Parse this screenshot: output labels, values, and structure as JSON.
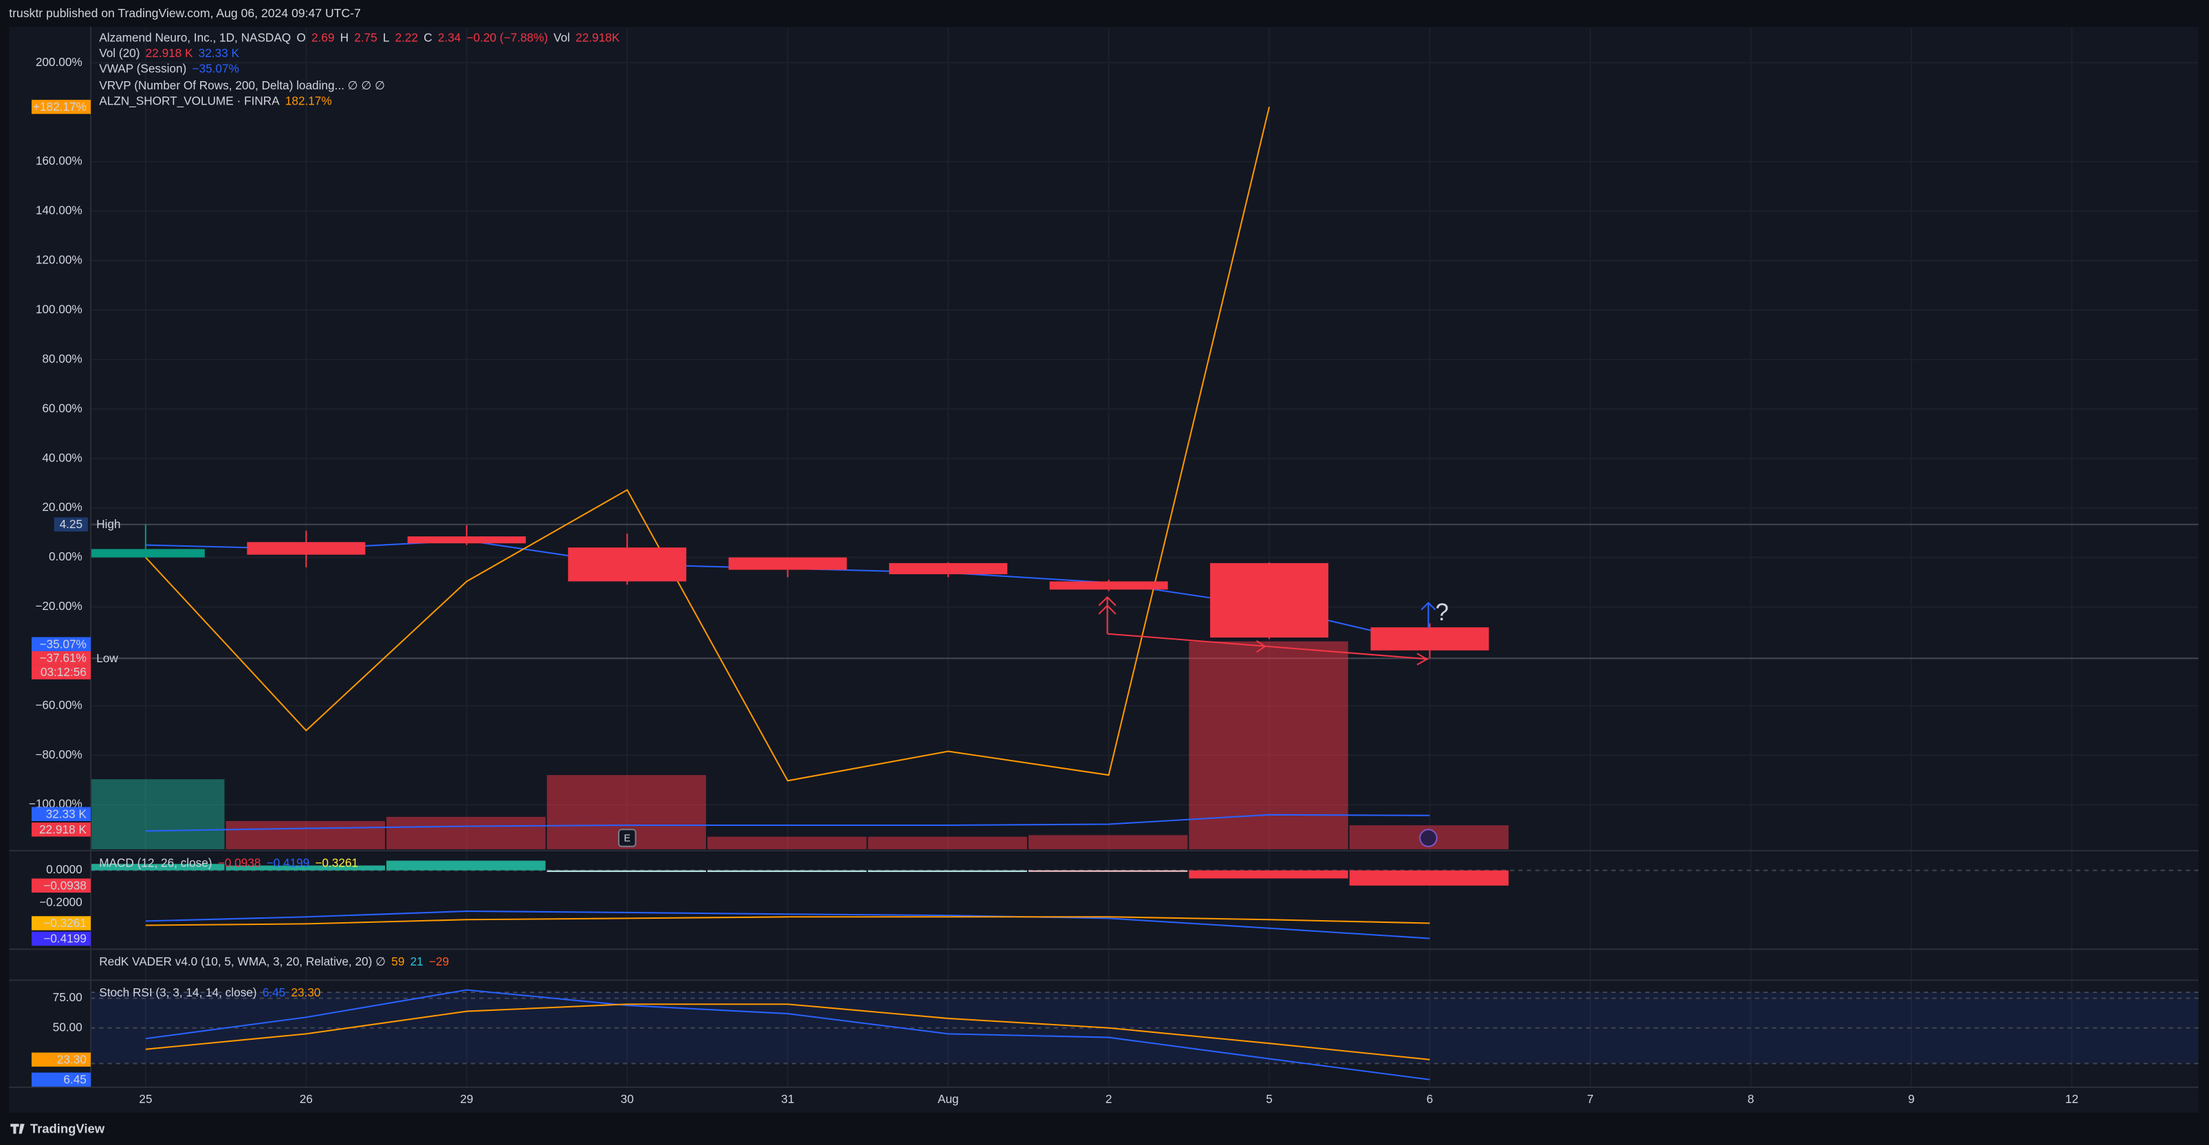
{
  "header": {
    "text": "trusktr published on TradingView.com, Aug 06, 2024 09:47 UTC-7"
  },
  "footer": {
    "brand": "TradingView"
  },
  "annotations": [
    {
      "text": "?"
    }
  ],
  "chart_data": [
    {
      "type": "candlestick",
      "legend": [
        [
          {
            "text": "Alzamend Neuro, Inc., 1D, NASDAQ"
          },
          {
            "text": "O"
          },
          {
            "text": "2.69",
            "color": "#f23645"
          },
          {
            "text": "H"
          },
          {
            "text": "2.75",
            "color": "#f23645"
          },
          {
            "text": "L"
          },
          {
            "text": "2.22",
            "color": "#f23645"
          },
          {
            "text": "C"
          },
          {
            "text": "2.34",
            "color": "#f23645"
          },
          {
            "text": "−0.20 (−7.88%)",
            "color": "#f23645"
          },
          {
            "text": "Vol"
          },
          {
            "text": "22.918K",
            "color": "#f23645"
          }
        ],
        [
          {
            "text": "Vol (20)"
          },
          {
            "text": "22.918 K",
            "color": "#f23645"
          },
          {
            "text": "32.33 K",
            "color": "#2962ff"
          }
        ],
        [
          {
            "text": "VWAP (Session)"
          },
          {
            "text": "−35.07%",
            "color": "#2962ff"
          }
        ],
        [
          {
            "text": "VRVP (Number Of Rows, 200, Delta) loading...  ∅  ∅  ∅"
          }
        ],
        [
          {
            "text": "ALZN_SHORT_VOLUME · FINRA"
          },
          {
            "text": "182.17%",
            "color": "#ff9800"
          }
        ]
      ],
      "categories": [
        "25",
        "26",
        "29",
        "30",
        "31",
        "Aug",
        "2",
        "5",
        "6",
        "7",
        "8",
        "9",
        "12"
      ],
      "open": [
        0,
        6.2,
        8.5,
        4,
        0,
        -2.3,
        -9.7,
        -2.3,
        -28.27,
        null,
        null,
        null,
        null
      ],
      "high": [
        13.33,
        10.8,
        13,
        9.6,
        0,
        -2,
        -9,
        -2,
        -26.67,
        null,
        null,
        null,
        null
      ],
      "low": [
        0,
        -4,
        5,
        -11,
        -8,
        -8,
        -13.6,
        -33,
        -40.8,
        null,
        null,
        null,
        null
      ],
      "close": [
        3.4,
        1.1,
        5.7,
        -9.7,
        -5,
        -6.8,
        -13,
        -32.4,
        -37.61,
        null,
        null,
        null,
        null
      ],
      "up_color": "#089981",
      "down_color": "#f23645",
      "series": [
        {
          "color": "#2962ff",
          "values": [
            5,
            3.4,
            6.8,
            -2.8,
            -4.5,
            -6.2,
            -10.2,
            -19.9,
            -35.07,
            null,
            null,
            null,
            null
          ]
        },
        {
          "color": "#ff9800",
          "values": [
            0,
            -70,
            -9.7,
            27.3,
            -90.3,
            -78.4,
            -88,
            182.17,
            null,
            null,
            null,
            null,
            null
          ]
        }
      ],
      "ylim": [
        -118,
        214
      ],
      "yticks": [
        {
          "value": 200,
          "label": "200.00%"
        },
        {
          "value": 160,
          "label": "160.00%"
        },
        {
          "value": 140,
          "label": "140.00%"
        },
        {
          "value": 120,
          "label": "120.00%"
        },
        {
          "value": 100,
          "label": "100.00%"
        },
        {
          "value": 80,
          "label": "80.00%"
        },
        {
          "value": 60,
          "label": "60.00%"
        },
        {
          "value": 40,
          "label": "40.00%"
        },
        {
          "value": 20,
          "label": "20.00%"
        },
        {
          "value": 0,
          "label": "0.00%"
        },
        {
          "value": -20,
          "label": "−20.00%"
        },
        {
          "value": -60,
          "label": "−60.00%"
        },
        {
          "value": -80,
          "label": "−80.00%"
        },
        {
          "value": -100,
          "label": "−100.00%"
        }
      ],
      "grid": true,
      "tags": [
        {
          "value": 182.17,
          "label": "+182.17%",
          "color": "#ff9800"
        },
        {
          "value": -35.07,
          "label": "−35.07%",
          "color": "#2962ff"
        },
        {
          "value": -37.61,
          "label": "−37.61%",
          "color": "#f23645"
        }
      ],
      "countdown": {
        "label": "03:12:56",
        "color": "#f23645"
      },
      "levels": [
        {
          "price": 4.25,
          "name": "High",
          "value": 13.33
        },
        {
          "price": 2.22,
          "name": "Low",
          "value": -40.8
        }
      ]
    },
    {
      "type": "bar",
      "values": [
        67,
        27,
        31,
        71,
        12,
        12,
        13.5,
        199,
        22.918,
        null,
        null,
        null,
        null
      ],
      "colors": [
        "#22ab94",
        "#f23645",
        "#f23645",
        "#f23645",
        "#f23645",
        "#f23645",
        "#f23645",
        "#f23645",
        "#f23645",
        null,
        null,
        null,
        null
      ],
      "ylim": [
        0,
        786
      ],
      "ma": {
        "color": "#2962ff",
        "values": [
          17.5,
          20,
          22,
          23,
          23,
          23,
          24,
          33,
          32.33,
          null,
          null,
          null,
          null
        ]
      },
      "tags": [
        {
          "value": 32.33,
          "label": "32.33 K",
          "color": "#2962ff"
        },
        {
          "value": 22.918,
          "label": "22.918 K",
          "color": "#f23645"
        }
      ]
    },
    {
      "type": "histogram",
      "legend": [
        [
          {
            "text": "MACD (12, 26, close)"
          },
          {
            "text": "−0.0938",
            "color": "#f23645"
          },
          {
            "text": "−0.4199",
            "color": "#2962ff"
          },
          {
            "text": "−0.3261",
            "color": "#ffeb3b"
          }
        ]
      ],
      "values": [
        0.04,
        0.03,
        0.06,
        -0.01,
        -0.01,
        -0.01,
        -0.002,
        -0.05,
        -0.0938,
        null,
        null,
        null,
        null
      ],
      "colors": [
        "#22ab94",
        "#22ab94",
        "#22ab94",
        "#b2dfdb",
        "#b2dfdb",
        "#b2dfdb",
        "#ffcdd2",
        "#f23645",
        "#f23645",
        null,
        null,
        null,
        null
      ],
      "series": [
        {
          "color": "#2962ff",
          "values": [
            -0.313,
            -0.287,
            -0.252,
            -0.26,
            -0.27,
            -0.278,
            -0.296,
            -0.357,
            -0.4199,
            null,
            null,
            null,
            null
          ]
        },
        {
          "color": "#ff9800",
          "values": [
            -0.339,
            -0.33,
            -0.304,
            -0.296,
            -0.287,
            -0.287,
            -0.287,
            -0.304,
            -0.3261,
            null,
            null,
            null,
            null
          ]
        }
      ],
      "ylim": [
        -0.478,
        0.113
      ],
      "yticks": [
        {
          "value": 0,
          "label": "0.0000"
        },
        {
          "value": -0.2,
          "label": "−0.2000"
        }
      ],
      "tags": [
        {
          "value": -0.0938,
          "label": "−0.0938",
          "color": "#f23645"
        },
        {
          "value": -0.3261,
          "label": "−0.3261",
          "color": "#ffb300"
        },
        {
          "value": -0.4199,
          "label": "−0.4199",
          "color": "#3d2fff"
        }
      ]
    },
    {
      "type": "line",
      "legend": [
        [
          {
            "text": "RedK VADER v4.0 (10, 5, WMA, 3, 20, Relative, 20)  ∅"
          },
          {
            "text": "59",
            "color": "#ff9800"
          },
          {
            "text": "21",
            "color": "#26c6da"
          },
          {
            "text": "−29",
            "color": "#ff5722"
          }
        ]
      ]
    },
    {
      "type": "line",
      "legend": [
        [
          {
            "text": "Stoch RSI (3, 3, 14, 14, close)"
          },
          {
            "text": "6.45",
            "color": "#2962ff"
          },
          {
            "text": "23.30",
            "color": "#ff9800"
          }
        ]
      ],
      "series": [
        {
          "color": "#2962ff",
          "values": [
            41,
            59,
            82,
            69,
            62,
            45,
            42,
            24,
            6.45,
            null,
            null,
            null,
            null
          ]
        },
        {
          "color": "#ff9800",
          "values": [
            32,
            45,
            64,
            70,
            70,
            58,
            50,
            37,
            23.3,
            null,
            null,
            null,
            null
          ]
        }
      ],
      "ylim": [
        0,
        89
      ],
      "yticks": [
        {
          "value": 75,
          "label": "75.00"
        },
        {
          "value": 50,
          "label": "50.00"
        }
      ],
      "band": [
        20,
        80
      ],
      "tags": [
        {
          "value": 23.3,
          "label": "23.30",
          "color": "#ff9800"
        },
        {
          "value": 6.45,
          "label": "6.45",
          "color": "#2962ff"
        }
      ]
    }
  ]
}
